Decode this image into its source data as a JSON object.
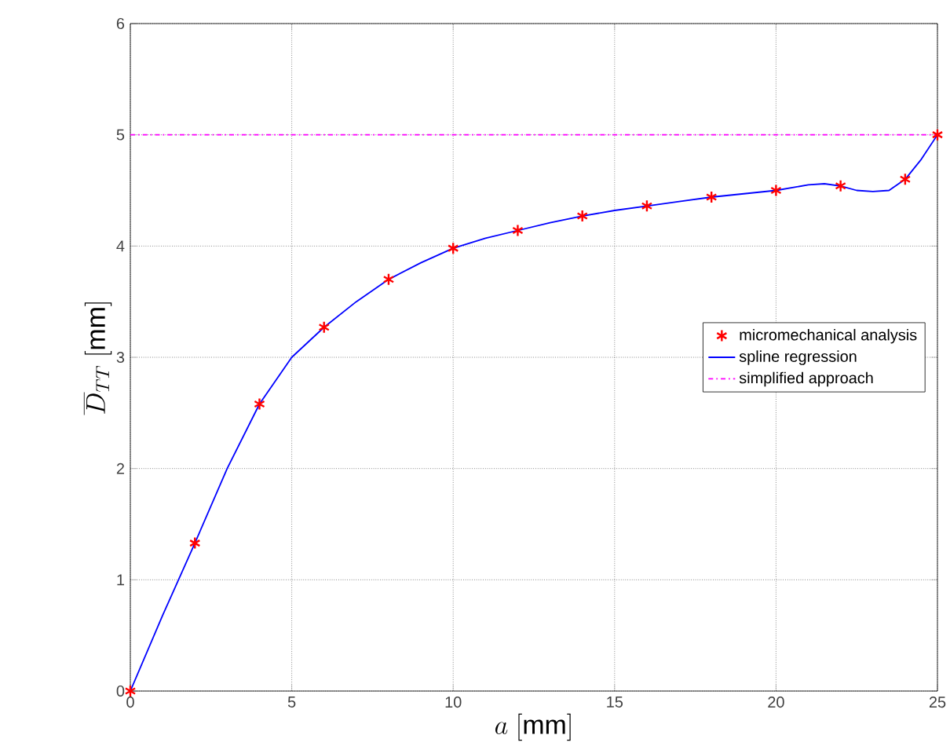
{
  "chart_data": {
    "type": "line",
    "xlabel": "a\\ [\\mathrm{mm}]",
    "ylabel": "\\overline{D}_{TT}\\ [\\mathrm{mm}]",
    "series": [
      {
        "name": "micromechanical analysis",
        "type": "scatter",
        "color": "#ff0000",
        "marker": "cross",
        "x": [
          0,
          2,
          4,
          6,
          8,
          10,
          12,
          14,
          16,
          18,
          20,
          22,
          24,
          25
        ],
        "values": [
          0,
          1.33,
          2.58,
          3.27,
          3.7,
          3.98,
          4.14,
          4.27,
          4.36,
          4.44,
          4.5,
          4.54,
          4.6,
          5
        ]
      },
      {
        "name": "spline regression",
        "color": "#0000ff",
        "line_style": "solid",
        "x": [
          0,
          1,
          2,
          3,
          4,
          5,
          6,
          7,
          8,
          9,
          10,
          11,
          12,
          13,
          14,
          15,
          16,
          17,
          18,
          19,
          20,
          21,
          21.5,
          22,
          22.5,
          23,
          23.5,
          24,
          24.5,
          25
        ],
        "values": [
          0,
          0.68,
          1.33,
          2.0,
          2.58,
          3.0,
          3.27,
          3.5,
          3.7,
          3.85,
          3.98,
          4.07,
          4.14,
          4.21,
          4.27,
          4.32,
          4.36,
          4.4,
          4.44,
          4.47,
          4.5,
          4.55,
          4.56,
          4.54,
          4.5,
          4.49,
          4.5,
          4.6,
          4.78,
          5
        ]
      },
      {
        "name": "simplified approach",
        "color": "#ff00ff",
        "line_style": "dashdot",
        "x": [
          0,
          25
        ],
        "values": [
          5,
          5
        ]
      }
    ],
    "xlim": [
      0,
      25
    ],
    "ylim": [
      0,
      6
    ],
    "xticks": [
      0,
      5,
      10,
      15,
      20,
      25
    ],
    "yticks": [
      0,
      1,
      2,
      3,
      4,
      5,
      6
    ],
    "grid": true,
    "legend": "right"
  }
}
